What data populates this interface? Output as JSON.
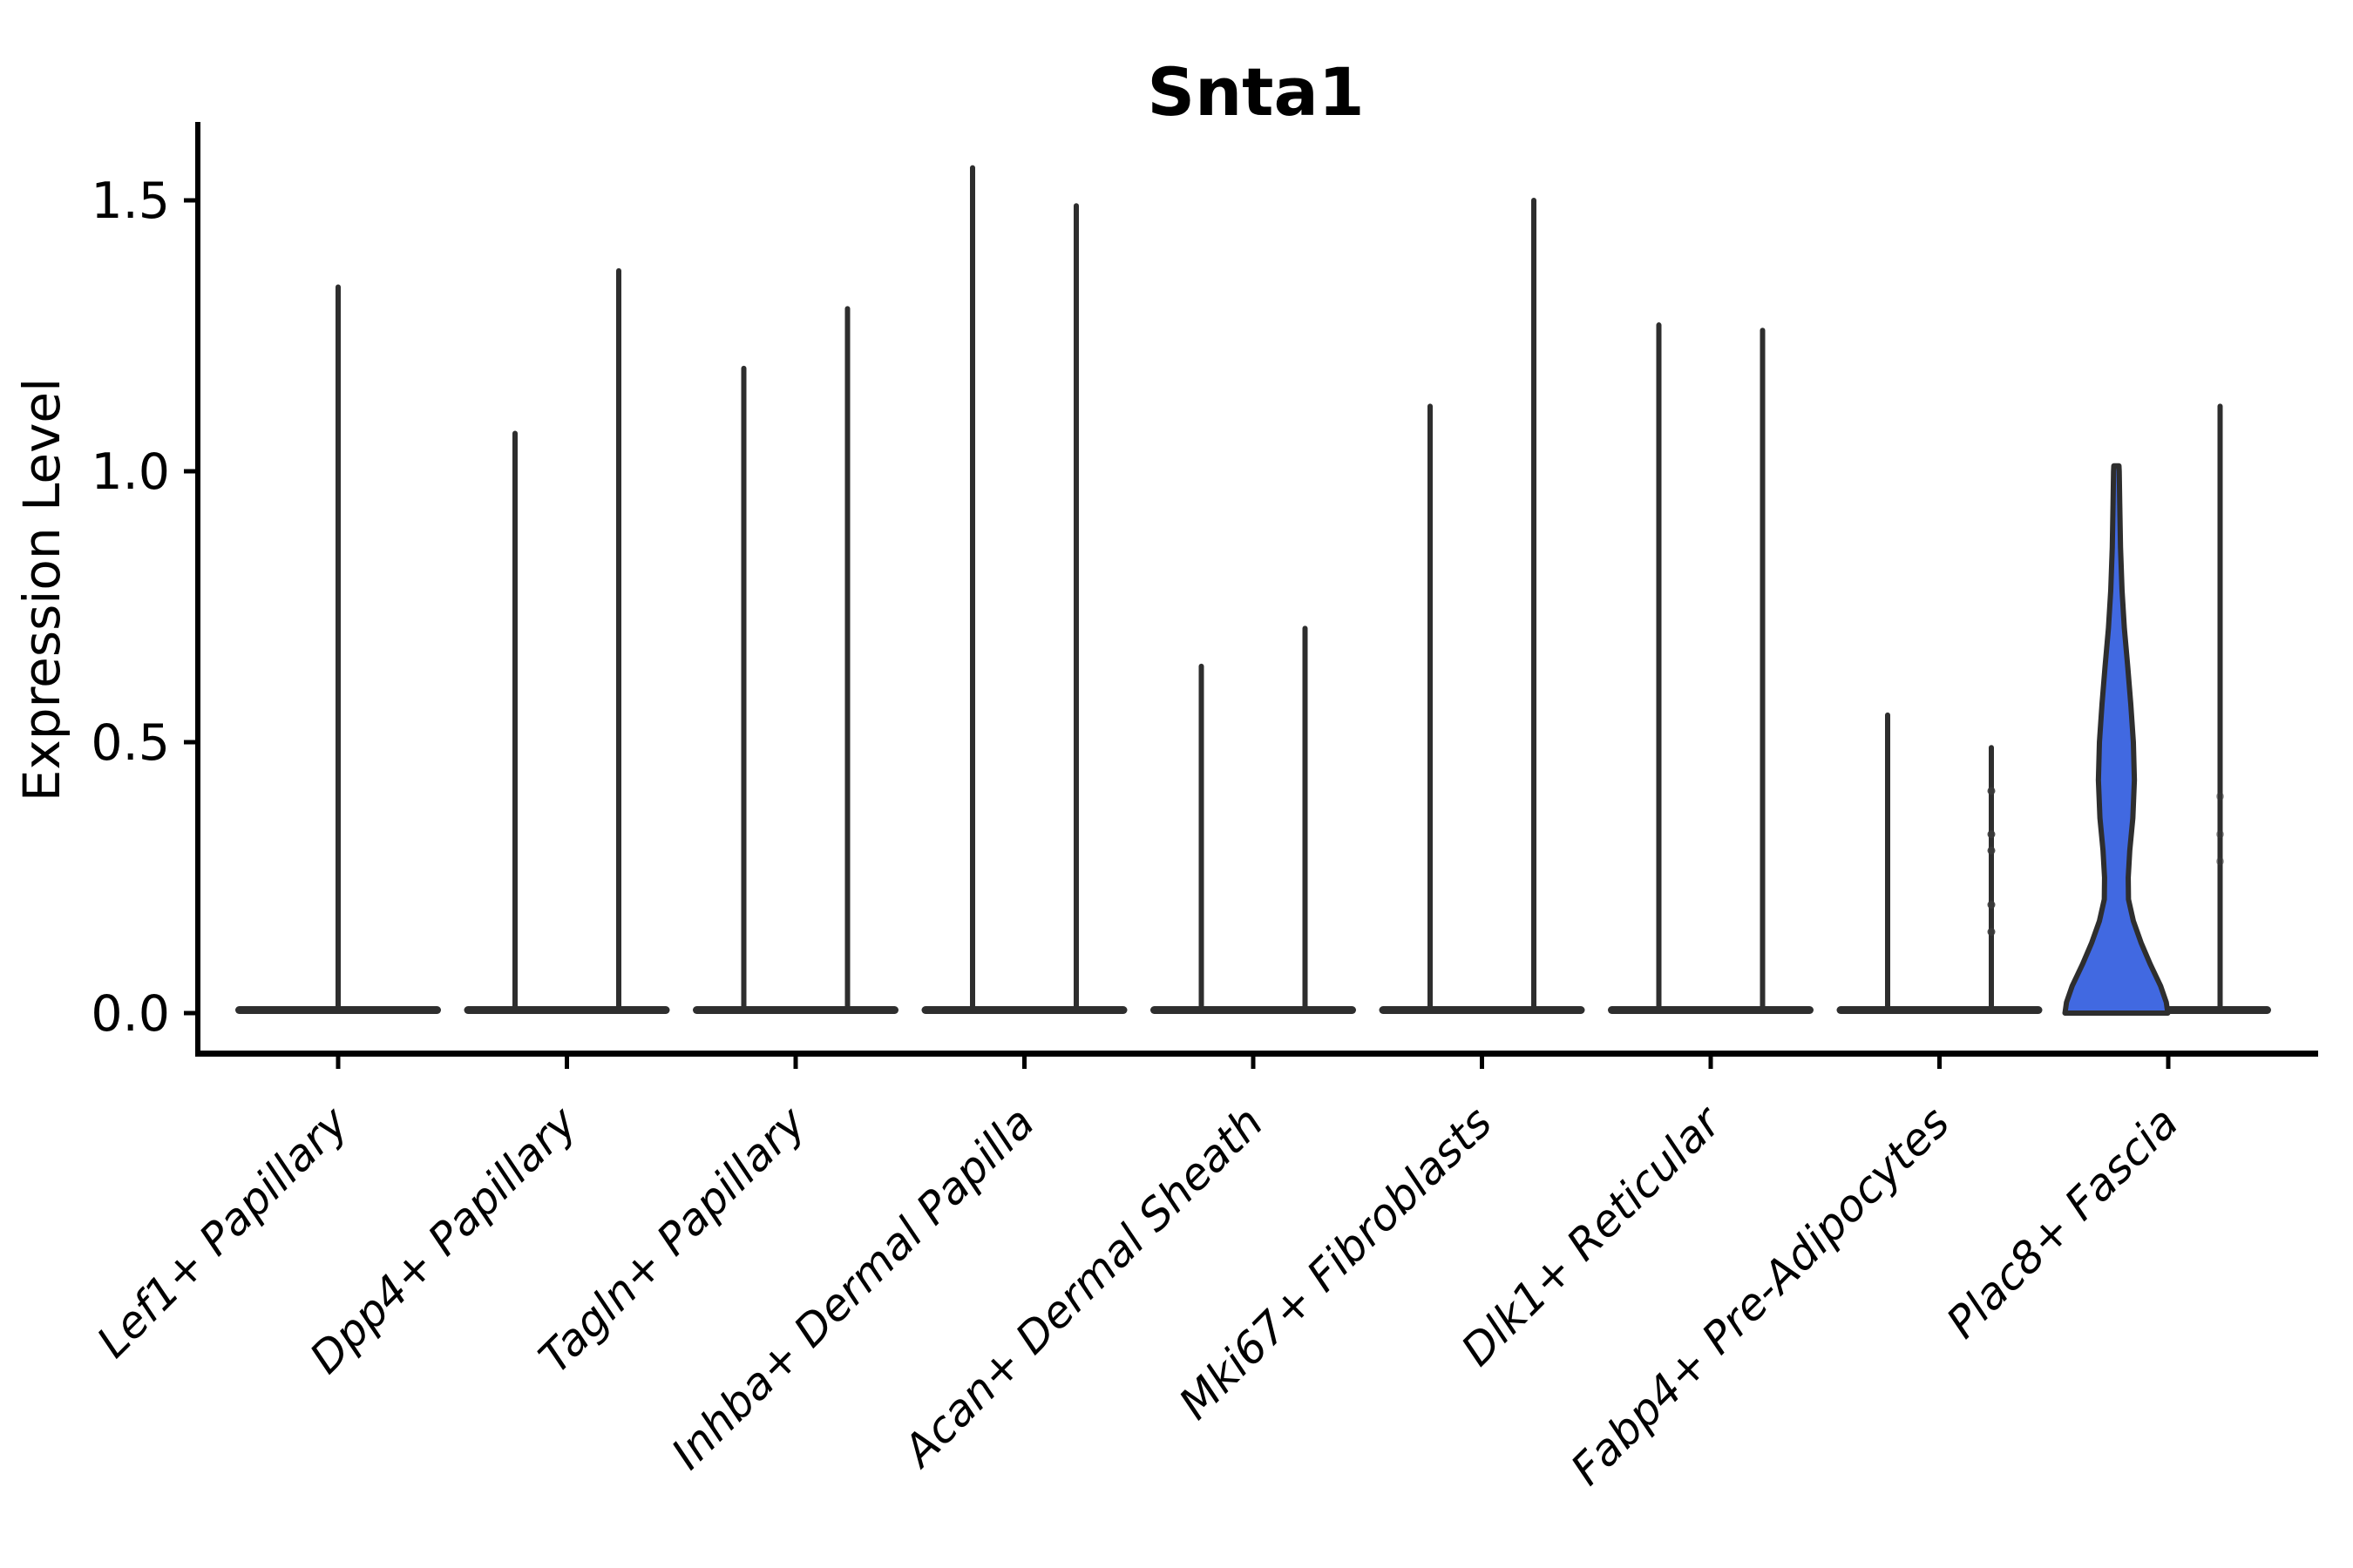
{
  "figure": {
    "title": "Snta1",
    "ylabel": "Expression Level"
  },
  "colors": {
    "background": "#ffffff",
    "violin_stroke": "#2e2e2e",
    "highlight_fill": "#4169e1",
    "axis_color": "#000000",
    "text_color": "#000000",
    "point_color": "#3a3a3a"
  },
  "chart_data": {
    "type": "violin",
    "title": "Snta1",
    "xlabel": "",
    "ylabel": "Expression Level",
    "grid": false,
    "legend_position": "none",
    "ylim": [
      -0.07,
      1.645
    ],
    "ytick_labels": [
      "0.0",
      "0.5",
      "1.0",
      "1.5"
    ],
    "ytick_values": [
      0.0,
      0.5,
      1.0,
      1.5
    ],
    "categories": [
      "Lef1+ Papillary",
      "Dpp4+ Papillary",
      "Tagln+ Papillary",
      "Inhba+ Dermal Papilla",
      "Acan+ Dermal Sheath",
      "Mki67+ Fibroblasts",
      "Dlk1+ Reticular",
      "Fabp4+ Pre-Adipocytes",
      "Plac8+ Fascia"
    ],
    "description": "Violin plot of Snta1 expression; two adjacent narrow violins per category (expression concentrated at 0 with a thin density spike up to the max value); the left violin of Plac8+ Fascia is wide and filled blue.",
    "series": [
      {
        "category": "Lef1+ Papillary",
        "violins": [
          {
            "pos": "center",
            "max": 1.34
          }
        ]
      },
      {
        "category": "Dpp4+ Papillary",
        "violins": [
          {
            "pos": "left",
            "max": 1.07
          },
          {
            "pos": "right",
            "max": 1.37
          }
        ]
      },
      {
        "category": "Tagln+ Papillary",
        "violins": [
          {
            "pos": "left",
            "max": 1.19
          },
          {
            "pos": "right",
            "max": 1.3
          }
        ]
      },
      {
        "category": "Inhba+ Dermal Papilla",
        "violins": [
          {
            "pos": "left",
            "max": 1.56
          },
          {
            "pos": "right",
            "max": 1.49
          }
        ]
      },
      {
        "category": "Acan+ Dermal Sheath",
        "violins": [
          {
            "pos": "left",
            "max": 0.64
          },
          {
            "pos": "right",
            "max": 0.71
          }
        ]
      },
      {
        "category": "Mki67+ Fibroblasts",
        "violins": [
          {
            "pos": "left",
            "max": 1.12
          },
          {
            "pos": "right",
            "max": 1.5
          }
        ]
      },
      {
        "category": "Dlk1+ Reticular",
        "violins": [
          {
            "pos": "left",
            "max": 1.27
          },
          {
            "pos": "right",
            "max": 1.26
          }
        ]
      },
      {
        "category": "Fabp4+ Pre-Adipocytes",
        "violins": [
          {
            "pos": "left",
            "max": 0.55
          },
          {
            "pos": "right",
            "max": 0.49
          }
        ],
        "points": [
          {
            "pos": "right",
            "values": [
              0.41,
              0.33,
              0.3,
              0.2,
              0.15
            ],
            "opacity": 0.9
          }
        ]
      },
      {
        "category": "Plac8+ Fascia",
        "violins": [
          {
            "pos": "left",
            "max": 1.01,
            "highlighted": true,
            "fill": "#4169e1",
            "profile": [
              [
                0.0,
                1.0
              ],
              [
                0.02,
                0.97
              ],
              [
                0.05,
                0.86
              ],
              [
                0.09,
                0.66
              ],
              [
                0.13,
                0.48
              ],
              [
                0.17,
                0.33
              ],
              [
                0.21,
                0.235
              ],
              [
                0.25,
                0.23
              ],
              [
                0.3,
                0.26
              ],
              [
                0.36,
                0.32
              ],
              [
                0.43,
                0.35
              ],
              [
                0.5,
                0.33
              ],
              [
                0.57,
                0.28
              ],
              [
                0.64,
                0.22
              ],
              [
                0.71,
                0.155
              ],
              [
                0.78,
                0.11
              ],
              [
                0.86,
                0.08
              ],
              [
                0.94,
                0.065
              ],
              [
                1.0,
                0.055
              ],
              [
                1.01,
                0.05
              ]
            ]
          },
          {
            "pos": "right",
            "max": 1.12
          }
        ],
        "points": [
          {
            "pos": "right",
            "values": [
              0.4,
              0.33,
              0.28
            ],
            "opacity": 0.45
          }
        ]
      }
    ]
  }
}
